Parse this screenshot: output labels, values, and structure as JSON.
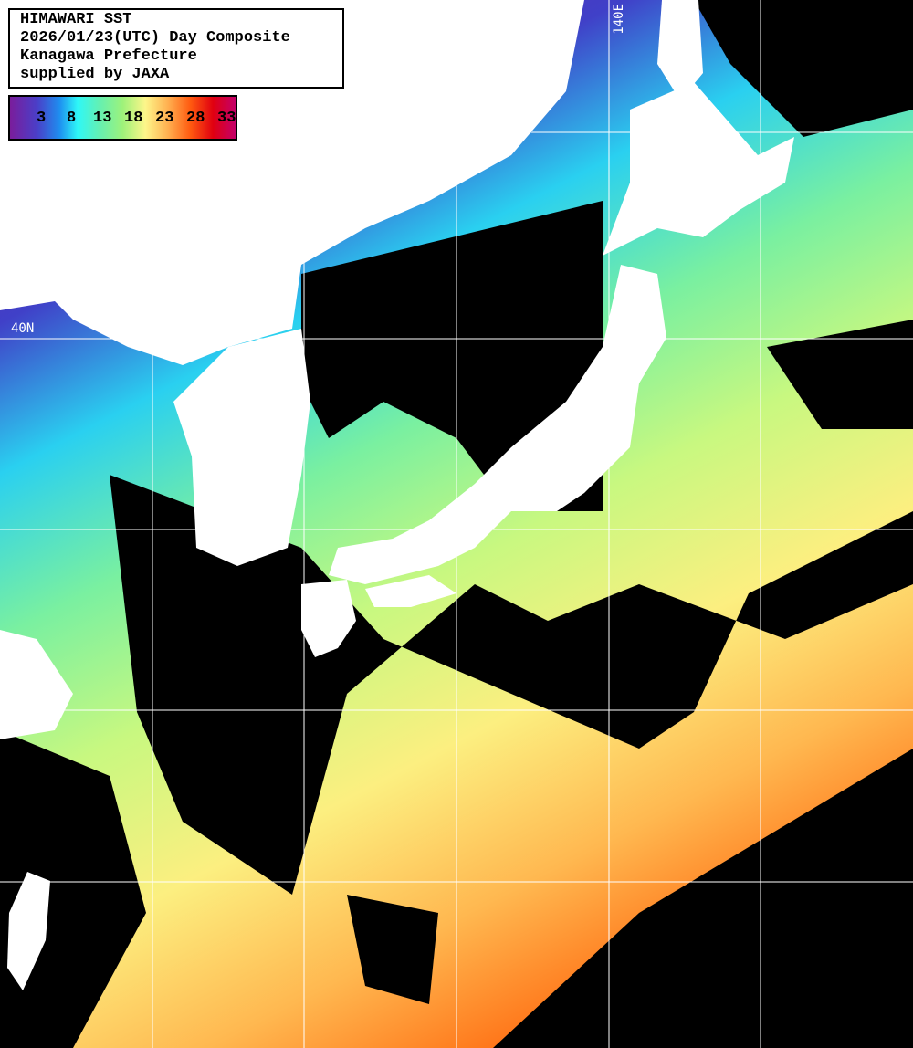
{
  "info": {
    "title": "HIMAWARI SST",
    "date_line": "2026/01/23(UTC) Day Composite",
    "organization": "Kanagawa Prefecture",
    "credit": "supplied by JAXA"
  },
  "legend": {
    "ticks": [
      "3",
      "8",
      "13",
      "18",
      "23",
      "28",
      "33"
    ],
    "unit_colors": [
      "#7a1d9c",
      "#1e8ff0",
      "#2ef7f7",
      "#9ef27a",
      "#fdf68a",
      "#ff5a10",
      "#e00010",
      "#c4006a"
    ]
  },
  "grid": {
    "lon_label": "140E",
    "lat_label": "40N"
  },
  "colors": {
    "land": "#ffffff",
    "cloud": "#000000",
    "grid": "#ffffff"
  }
}
